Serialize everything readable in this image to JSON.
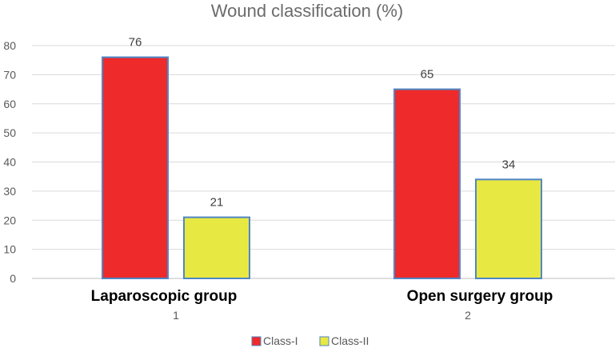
{
  "chart_data": {
    "type": "bar",
    "title": "Wound classification (%)",
    "categories": [
      "1",
      "2"
    ],
    "group_labels": [
      "Laparoscopic  group",
      "Open surgery group"
    ],
    "series": [
      {
        "name": "Class-I",
        "values": [
          76,
          65
        ],
        "color": "#ee2a2a"
      },
      {
        "name": "Class-II",
        "values": [
          21,
          34
        ],
        "color": "#e8e842"
      }
    ],
    "bar_border_color": "#4f86c6",
    "ylim": [
      0,
      80
    ],
    "yticks": [
      0,
      10,
      20,
      30,
      40,
      50,
      60,
      70,
      80
    ],
    "grid": true,
    "legend": "bottom"
  }
}
